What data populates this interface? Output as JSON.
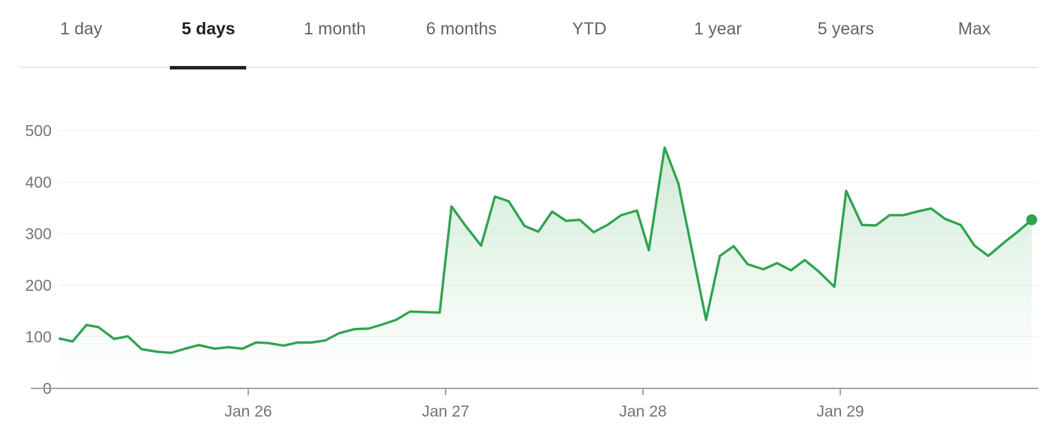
{
  "tabs": [
    {
      "label": "1 day",
      "selected": false
    },
    {
      "label": "5 days",
      "selected": true
    },
    {
      "label": "1 month",
      "selected": false
    },
    {
      "label": "6 months",
      "selected": false
    },
    {
      "label": "YTD",
      "selected": false
    },
    {
      "label": "1 year",
      "selected": false
    },
    {
      "label": "5 years",
      "selected": false
    },
    {
      "label": "Max",
      "selected": false
    }
  ],
  "chart_data": {
    "type": "area",
    "title": "",
    "xlabel": "",
    "ylabel": "",
    "ylim": [
      0,
      500
    ],
    "y_ticks": [
      "0",
      "100",
      "200",
      "300",
      "400",
      "500"
    ],
    "x_ticks": [
      {
        "label": "Jan 26",
        "x": 26
      },
      {
        "label": "Jan 27",
        "x": 27
      },
      {
        "label": "Jan 28",
        "x": 28
      },
      {
        "label": "Jan 29",
        "x": 29
      }
    ],
    "grid": true,
    "line_color": "#2ea44f",
    "last_point_marker": true,
    "series": [
      {
        "x": [
          25.04,
          25.11,
          25.18,
          25.24,
          25.32,
          25.39,
          25.46,
          25.54,
          25.61,
          25.68,
          25.75,
          25.83,
          25.9,
          25.97,
          26.04,
          26.1,
          26.18,
          26.25,
          26.32,
          26.39,
          26.46,
          26.54,
          26.61,
          26.68,
          26.75,
          26.82,
          26.89,
          26.97,
          27.03,
          27.1,
          27.18,
          27.25,
          27.32,
          27.4,
          27.47,
          27.54,
          27.61,
          27.68,
          27.75,
          27.82,
          27.89,
          27.97,
          28.03,
          28.11,
          28.18,
          28.25,
          28.32,
          28.39,
          28.46,
          28.53,
          28.61,
          28.68,
          28.75,
          28.82,
          28.89,
          28.97,
          29.03,
          29.11,
          29.18,
          29.25,
          29.32,
          29.39,
          29.46,
          29.53,
          29.61,
          29.68,
          29.75,
          29.83,
          29.9,
          29.97
        ],
        "values": [
          97,
          91,
          123,
          119,
          96,
          101,
          76,
          71,
          69,
          77,
          84,
          77,
          80,
          77,
          89,
          88,
          83,
          89,
          89,
          93,
          107,
          115,
          116,
          124,
          133,
          149,
          148,
          147,
          353,
          316,
          277,
          372,
          363,
          315,
          304,
          343,
          325,
          327,
          303,
          317,
          336,
          345,
          268,
          467,
          397,
          265,
          133,
          257,
          276,
          241,
          231,
          243,
          229,
          249,
          227,
          197,
          383,
          317,
          316,
          336,
          336,
          343,
          349,
          329,
          317,
          277,
          257,
          283,
          304,
          327
        ]
      }
    ]
  }
}
